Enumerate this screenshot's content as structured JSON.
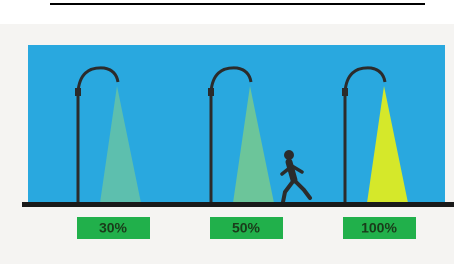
{
  "lamps": [
    {
      "label": "30%"
    },
    {
      "label": "50%"
    },
    {
      "label": "100%"
    }
  ]
}
